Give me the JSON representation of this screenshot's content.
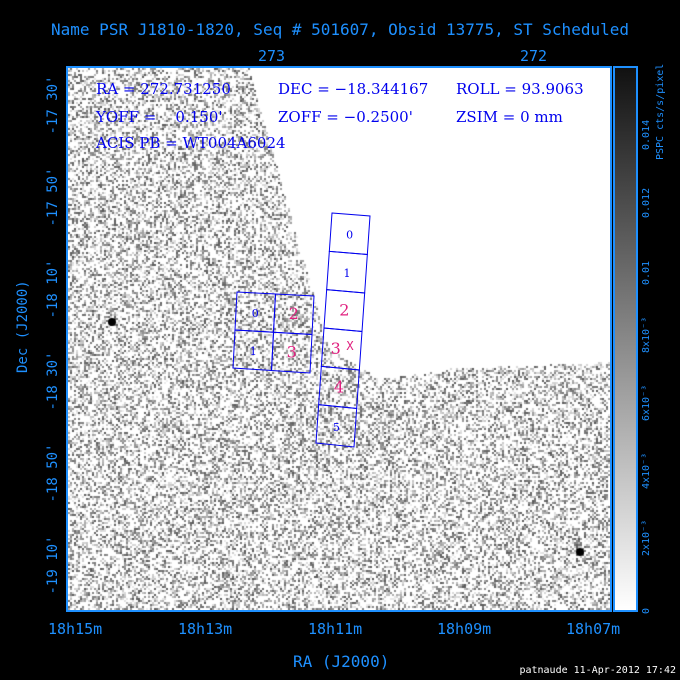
{
  "title": "Name PSR J1810-1820, Seq # 501607, Obsid 13775, ST Scheduled",
  "info": {
    "ra": "RA = 272.731250",
    "dec": "DEC = −18.344167",
    "roll": "ROLL = 93.9063",
    "yoff": "YOFF =    0.150'",
    "zoff": "ZOFF = −0.2500'",
    "zsim": "ZSIM = 0 mm",
    "acis_pb": "ACIS PB = WT004A6024"
  },
  "axes": {
    "xlabel": "RA (J2000)",
    "ylabel": "Dec (J2000)",
    "ra_ticks": [
      "18h15m",
      "18h13m",
      "18h11m",
      "18h09m",
      "18h07m"
    ],
    "top_ticks": [
      "273",
      "272"
    ],
    "dec_ticks": [
      "-17 30'",
      "-17 50'",
      "-18 10'",
      "-18 30'",
      "-18 50'",
      "-19 10'"
    ]
  },
  "colorbar": {
    "label": "PSPC cts/s/pixel",
    "ticks": [
      "0",
      "2x10⁻³",
      "4x10⁻³",
      "6x10⁻³",
      "8x10⁻³",
      "0.01",
      "0.012",
      "0.014"
    ],
    "range": [
      0,
      0.016
    ]
  },
  "chips": {
    "acis_i": [
      "0",
      "2",
      "1",
      "3"
    ],
    "acis_s": [
      "0",
      "1",
      "2",
      "3",
      "4",
      "5"
    ],
    "aimpoint": "X",
    "active_color": "#e0207f",
    "inactive_color": "#0000ee"
  },
  "credit": "patnaude 11-Apr-2012 17:42"
}
